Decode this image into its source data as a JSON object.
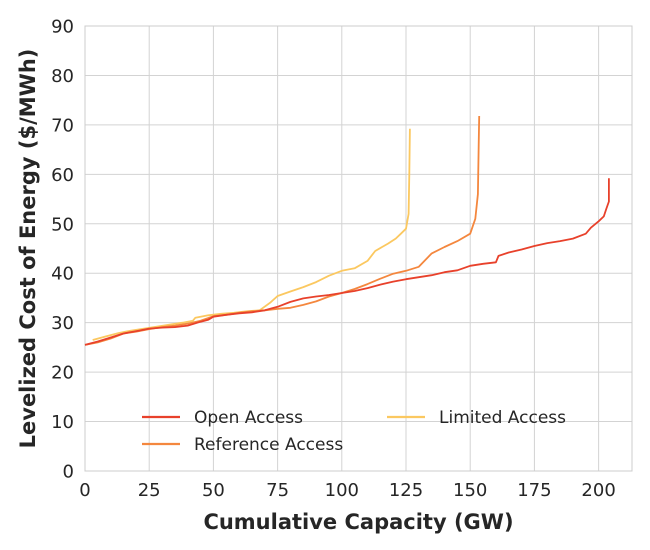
{
  "chart_data": {
    "type": "line",
    "title": "",
    "xlabel": "Cumulative Capacity (GW)",
    "ylabel": "Levelized Cost of Energy ($/MWh)",
    "xlim": [
      0,
      213
    ],
    "ylim": [
      0,
      90
    ],
    "xticks": [
      0,
      25,
      50,
      75,
      100,
      125,
      150,
      175,
      200
    ],
    "yticks": [
      0,
      10,
      20,
      30,
      40,
      50,
      60,
      70,
      80,
      90
    ],
    "grid": true,
    "legend_position": "lower-center",
    "series": [
      {
        "name": "Open Access",
        "color": "#e8412b",
        "x": [
          0,
          5,
          10,
          15,
          20,
          25,
          30,
          35,
          40,
          45,
          48,
          50,
          55,
          60,
          65,
          70,
          75,
          80,
          85,
          90,
          95,
          100,
          105,
          110,
          115,
          120,
          125,
          130,
          135,
          140,
          145,
          150,
          155,
          160,
          161,
          165,
          170,
          175,
          180,
          185,
          190,
          195,
          197,
          200,
          202,
          203,
          204,
          204
        ],
        "y": [
          25.5,
          26.2,
          27.0,
          27.8,
          28.3,
          28.8,
          29.0,
          29.1,
          29.4,
          30.2,
          30.6,
          31.2,
          31.6,
          31.9,
          32.1,
          32.5,
          33.2,
          34.2,
          34.9,
          35.3,
          35.6,
          36.0,
          36.4,
          37.0,
          37.7,
          38.3,
          38.8,
          39.2,
          39.6,
          40.2,
          40.6,
          41.5,
          41.9,
          42.2,
          43.5,
          44.2,
          44.8,
          45.5,
          46.1,
          46.5,
          47.0,
          48.0,
          49.2,
          50.5,
          51.5,
          53.0,
          54.5,
          59.2
        ]
      },
      {
        "name": "Reference Access",
        "color": "#f4873e",
        "x": [
          0,
          5,
          10,
          15,
          20,
          25,
          30,
          35,
          40,
          45,
          50,
          55,
          60,
          65,
          70,
          75,
          80,
          85,
          90,
          95,
          100,
          105,
          110,
          115,
          120,
          125,
          130,
          135,
          140,
          145,
          150,
          152,
          153,
          153.3,
          153.5
        ],
        "y": [
          25.5,
          26.0,
          26.8,
          27.8,
          28.2,
          28.7,
          29.1,
          29.4,
          29.8,
          30.4,
          31.3,
          31.6,
          32.0,
          32.3,
          32.5,
          32.8,
          33.0,
          33.6,
          34.3,
          35.3,
          36.0,
          36.8,
          37.8,
          38.9,
          39.9,
          40.5,
          41.3,
          44.0,
          45.3,
          46.5,
          48.0,
          51.0,
          56.0,
          66.0,
          71.8
        ]
      },
      {
        "name": "Limited Access",
        "color": "#fbc860",
        "x": [
          3,
          8,
          13,
          18,
          23,
          28,
          33,
          38,
          42,
          43,
          48,
          53,
          58,
          63,
          68,
          72,
          75,
          80,
          85,
          90,
          95,
          100,
          105,
          110,
          113,
          118,
          121,
          123,
          125,
          126,
          126.3,
          126.5
        ],
        "y": [
          26.5,
          27.2,
          27.9,
          28.4,
          28.8,
          29.2,
          29.6,
          30.0,
          30.4,
          31.0,
          31.5,
          31.8,
          32.0,
          32.3,
          32.5,
          34.0,
          35.4,
          36.3,
          37.2,
          38.2,
          39.5,
          40.5,
          41.0,
          42.5,
          44.5,
          46.0,
          47.0,
          48.0,
          49.0,
          52.0,
          60.0,
          69.2
        ]
      }
    ]
  }
}
